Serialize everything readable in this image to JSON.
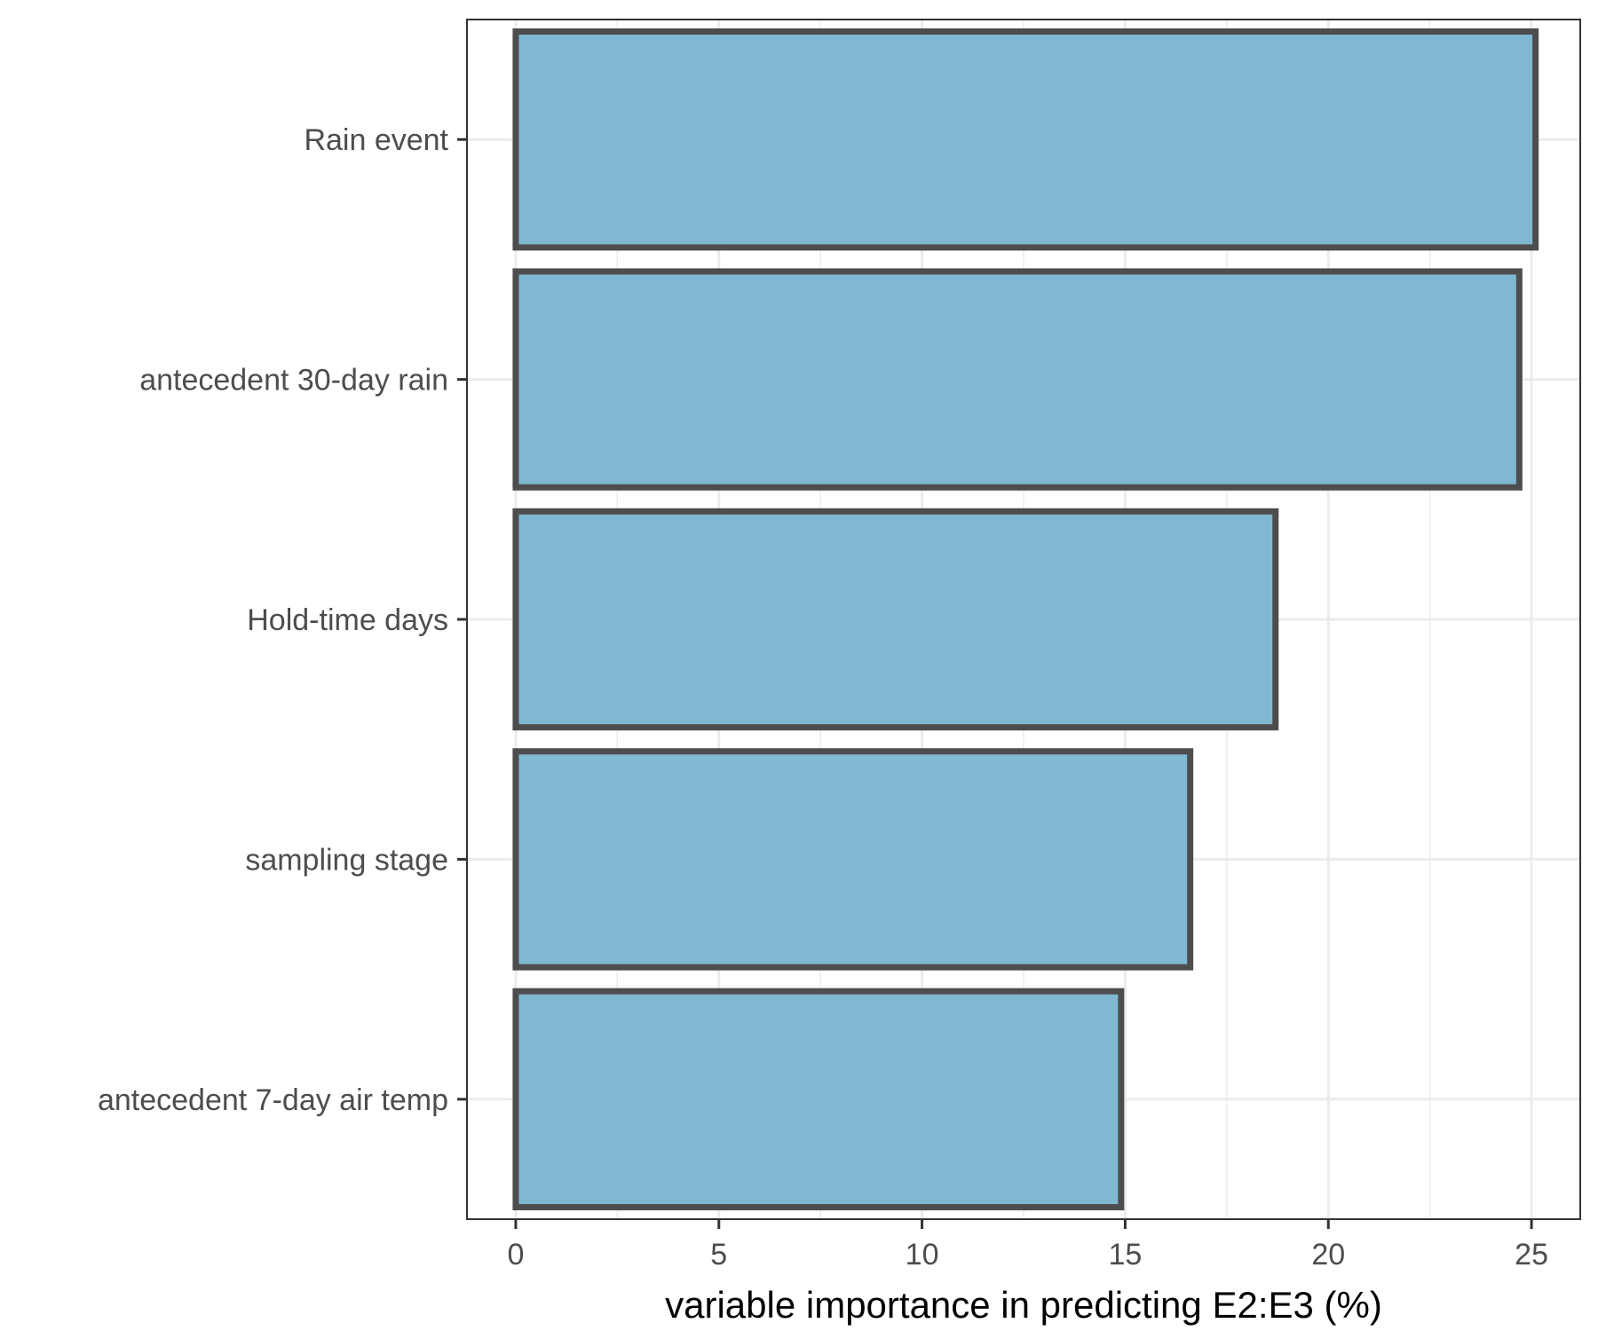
{
  "chart_data": {
    "type": "bar",
    "orientation": "horizontal",
    "categories": [
      "Rain event",
      "antecedent 30-day rain",
      "Hold-time days",
      "sampling stage",
      "antecedent 7-day air temp"
    ],
    "values": [
      25.1,
      24.7,
      18.7,
      16.6,
      14.9
    ],
    "xlabel": "variable importance in predicting E2:E3 (%)",
    "ylabel": "",
    "xlim": [
      -1.2,
      26.2
    ],
    "xticks": [
      0,
      5,
      10,
      15,
      20,
      25
    ],
    "grid": true,
    "colors": {
      "bar_fill": "#7fb8d0",
      "bar_stroke": "#4d4d4d",
      "grid": "#ebebeb",
      "panel_border": "#333333"
    }
  }
}
